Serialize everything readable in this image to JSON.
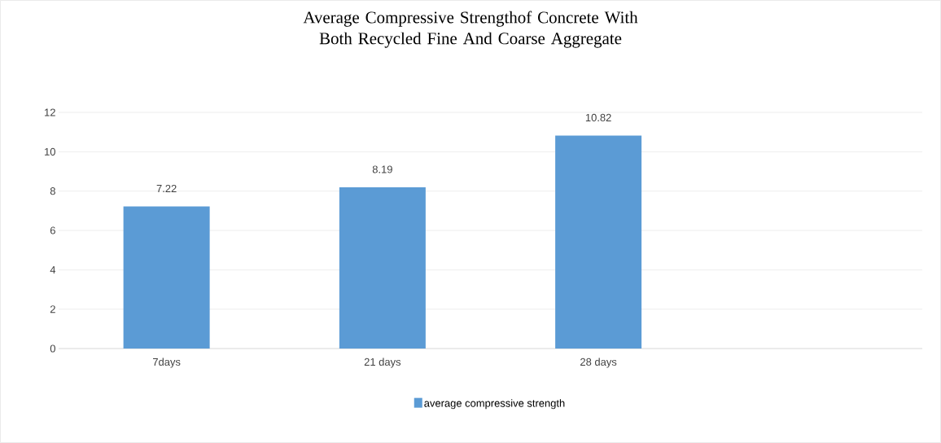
{
  "chart_data": {
    "type": "bar",
    "title": "Average Compressive Strengthof Concrete With Both Recycled Fine And Coarse Aggregate",
    "categories": [
      "7days",
      "21 days",
      "28 days",
      null
    ],
    "series": [
      {
        "name": "average compressive strength",
        "color": "#5b9bd5",
        "values": [
          7.22,
          8.19,
          10.82,
          null
        ]
      }
    ],
    "ylim": [
      0,
      12
    ],
    "yticks": [
      0,
      2,
      4,
      6,
      8,
      10,
      12
    ],
    "grid": "y",
    "legend": "bottom",
    "data_labels": true
  }
}
